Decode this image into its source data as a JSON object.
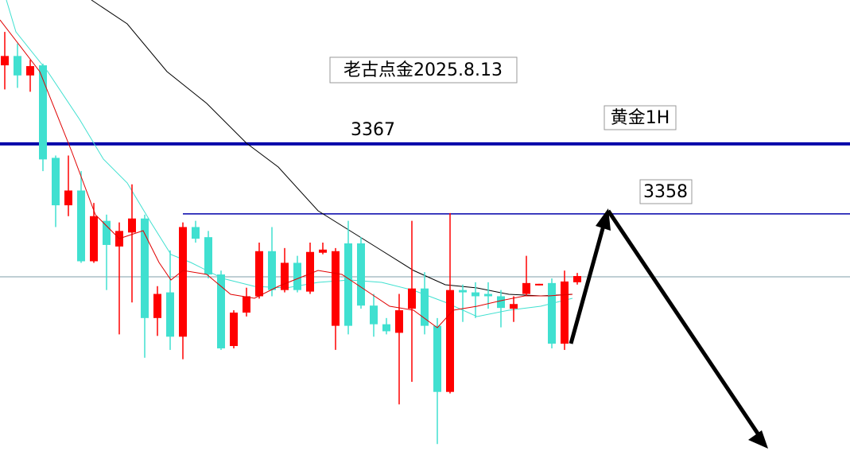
{
  "chart_data": {
    "type": "candlestick",
    "title": "老古点金2025.8.13",
    "subtitle": "黄金1H",
    "up_color": "#ff0000",
    "down_color": "#40e0d0",
    "ylim": [
      3327.5,
      3385.5
    ],
    "levels": [
      3367,
      3358
    ],
    "level_color": "#0000aa",
    "open": [
      3377.1,
      3378.3,
      3375.8,
      3377.1,
      3365.2,
      3359.1,
      3361.0,
      3351.9,
      3357.1,
      3353.8,
      3355.6,
      3357.4,
      3344.6,
      3347.9,
      3342.2,
      3356.3,
      3355.0,
      3350.2,
      3341.0,
      3345.3,
      3347.4,
      3353.2,
      3348.2,
      3351.7,
      3348.0,
      3353.0,
      3343.6,
      3354.2,
      3354.2,
      3346.2,
      3343.8,
      3342.7,
      3345.8,
      3348.4,
      3343.6,
      3335.1,
      3348.2,
      3347.9,
      3347.7,
      3347.4,
      3345.8,
      3347.7,
      3348.8,
      3349.1,
      3341.3,
      3349.2
    ],
    "high": [
      3381.4,
      3379.9,
      3377.8,
      3377.3,
      3365.5,
      3365.5,
      3363.5,
      3359.4,
      3357.9,
      3356.9,
      3361.8,
      3357.9,
      3348.7,
      3353.3,
      3356.9,
      3357.1,
      3355.8,
      3350.7,
      3345.6,
      3348.5,
      3354.3,
      3356.3,
      3353.6,
      3352.6,
      3354.3,
      3354.3,
      3353.6,
      3357.1,
      3355.0,
      3347.7,
      3344.6,
      3347.7,
      3357.1,
      3350.5,
      3344.6,
      3358.1,
      3348.9,
      3349.2,
      3349.2,
      3348.2,
      3347.4,
      3352.6,
      3349.0,
      3349.7,
      3350.7,
      3350.4
    ],
    "low": [
      3374.0,
      3374.2,
      3373.7,
      3363.5,
      3356.3,
      3357.7,
      3351.7,
      3351.7,
      3348.2,
      3342.5,
      3346.6,
      3339.5,
      3342.3,
      3340.5,
      3339.3,
      3354.3,
      3349.7,
      3340.5,
      3340.7,
      3344.8,
      3347.1,
      3347.4,
      3347.9,
      3347.9,
      3347.7,
      3352.8,
      3340.5,
      3342.5,
      3345.8,
      3342.2,
      3342.5,
      3333.5,
      3336.4,
      3342.5,
      3328.4,
      3334.9,
      3344.1,
      3344.6,
      3345.8,
      3343.4,
      3344.1,
      3347.4,
      3348.8,
      3340.7,
      3340.5,
      3348.9
    ],
    "close": [
      3378.3,
      3375.8,
      3377.0,
      3365.0,
      3359.1,
      3361.0,
      3351.9,
      3357.7,
      3354.0,
      3355.8,
      3357.4,
      3344.6,
      3347.7,
      3342.2,
      3356.3,
      3354.8,
      3350.2,
      3340.7,
      3345.3,
      3347.4,
      3353.2,
      3348.2,
      3351.7,
      3348.2,
      3353.1,
      3353.4,
      3353.2,
      3343.6,
      3346.2,
      3343.8,
      3342.9,
      3345.6,
      3348.4,
      3343.6,
      3335.1,
      3348.2,
      3347.9,
      3347.4,
      3347.4,
      3345.9,
      3346.4,
      3349.1,
      3349.0,
      3341.3,
      3349.3,
      3350.0
    ]
  }
}
